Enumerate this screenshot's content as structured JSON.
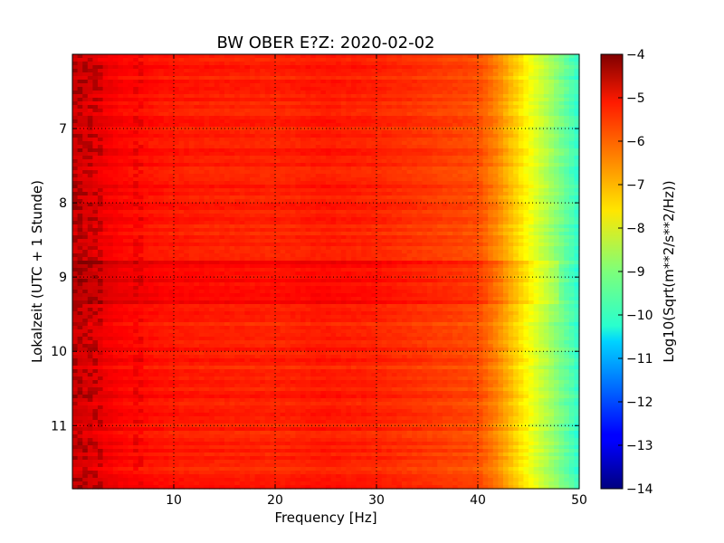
{
  "chart_data": {
    "type": "heatmap",
    "title": "BW OBER E?Z: 2020-02-02",
    "xlabel": "Frequency [Hz]",
    "ylabel": "Lokalzeit (UTC + 1 Stunde)",
    "xlim": [
      0,
      50
    ],
    "ylim": [
      11.85,
      6.0
    ],
    "x_ticks": [
      10,
      20,
      30,
      40,
      50
    ],
    "y_ticks": [
      7,
      8,
      9,
      10,
      11
    ],
    "grid": true,
    "colorbar": {
      "label": "Log10(Sqrt(m**2/s**2/Hz))",
      "colormap": "jet",
      "range": [
        -14,
        -4
      ],
      "ticks": [
        -4,
        -5,
        -6,
        -7,
        -8,
        -9,
        -10,
        -11,
        -12,
        -13,
        -14
      ]
    },
    "value_profile_by_frequency": {
      "frequency_hz": [
        0,
        5,
        10,
        20,
        25,
        30,
        35,
        40,
        42,
        44,
        46,
        48,
        50
      ],
      "log10_amplitude": [
        -4.8,
        -5.3,
        -5.5,
        -5.6,
        -5.5,
        -5.6,
        -5.8,
        -6.0,
        -6.6,
        -7.4,
        -8.2,
        -9.0,
        -9.8
      ]
    },
    "highlighted_time_band": {
      "start": 8.78,
      "end": 9.35,
      "offset": 0.3
    }
  }
}
